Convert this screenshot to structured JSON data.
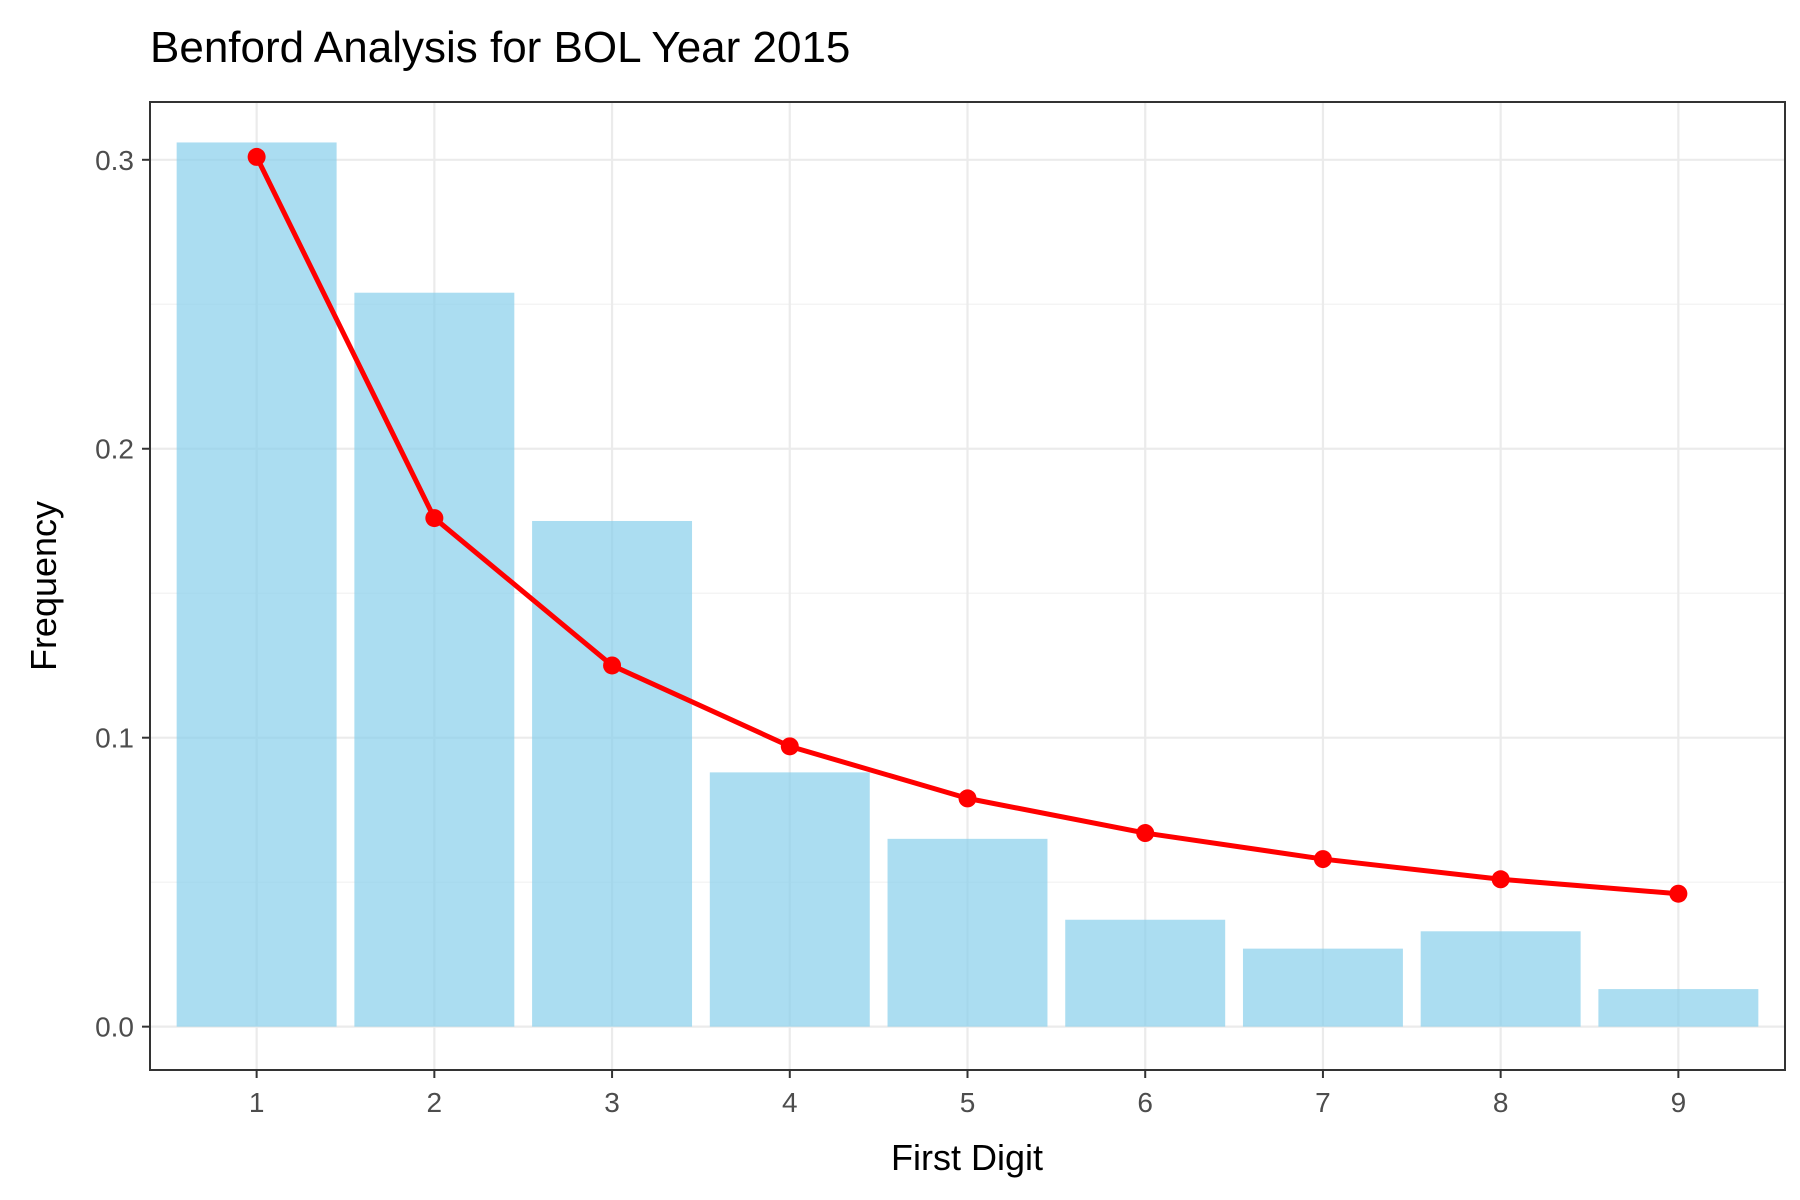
{
  "chart_data": {
    "type": "bar",
    "title": "Benford Analysis for BOL Year 2015",
    "xlabel": "First Digit",
    "ylabel": "Frequency",
    "categories": [
      "1",
      "2",
      "3",
      "4",
      "5",
      "6",
      "7",
      "8",
      "9"
    ],
    "ylim": [
      -0.015,
      0.32
    ],
    "y_ticks": [
      "0.0",
      "0.1",
      "0.2",
      "0.3"
    ],
    "y_tick_values": [
      0.0,
      0.1,
      0.2,
      0.3
    ],
    "grid": true,
    "series": [
      {
        "type": "bar",
        "color": "#87CEEB",
        "values": [
          0.306,
          0.254,
          0.175,
          0.088,
          0.065,
          0.037,
          0.027,
          0.033,
          0.013
        ]
      },
      {
        "type": "line",
        "color": "#FF0000",
        "values": [
          0.301,
          0.176,
          0.125,
          0.097,
          0.079,
          0.067,
          0.058,
          0.051,
          0.046
        ]
      }
    ]
  }
}
